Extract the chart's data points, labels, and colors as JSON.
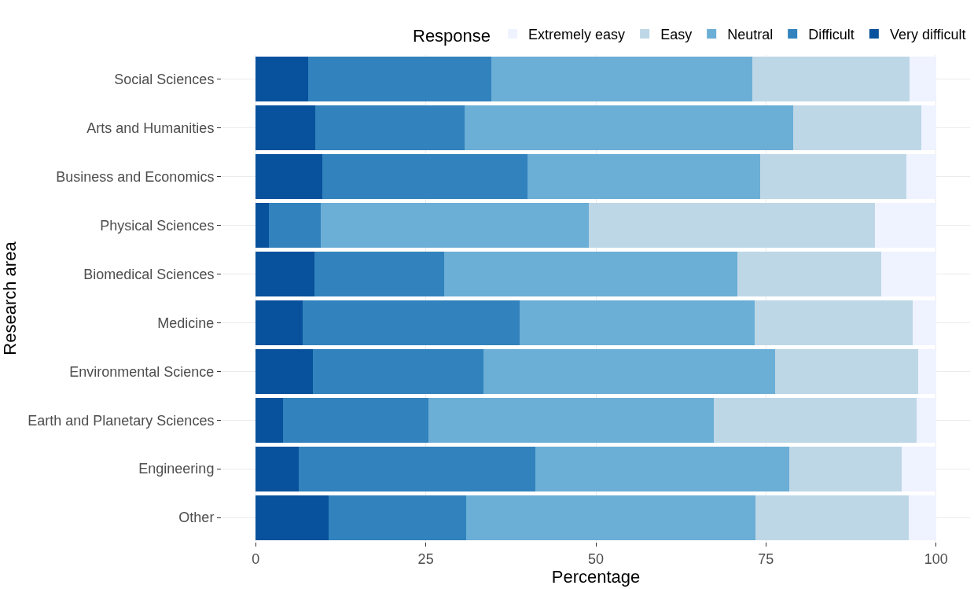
{
  "chart_data": {
    "type": "bar",
    "orientation": "horizontal",
    "stacked": true,
    "xlabel": "Percentage",
    "ylabel": "Research area",
    "legend_title": "Response",
    "legend": "top",
    "grid": true,
    "categories": [
      "Social Sciences",
      "Arts and Humanities",
      "Business and Economics",
      "Physical Sciences",
      "Biomedical Sciences",
      "Medicine",
      "Environmental Science",
      "Earth and Planetary Sciences",
      "Engineering",
      "Other"
    ],
    "xlim": [
      -5,
      105
    ],
    "xticks": [
      0,
      25,
      50,
      75,
      100
    ],
    "series": [
      {
        "name": "Very difficult",
        "color": "#08519c",
        "values": [
          7.7,
          8.7,
          9.8,
          1.9,
          8.6,
          6.9,
          8.4,
          4.0,
          6.3,
          10.7
        ]
      },
      {
        "name": "Difficult",
        "color": "#3182bd",
        "values": [
          26.9,
          22.0,
          30.1,
          7.7,
          19.1,
          31.9,
          25.1,
          21.4,
          34.8,
          20.2
        ]
      },
      {
        "name": "Neutral",
        "color": "#6baed6",
        "values": [
          38.4,
          48.3,
          34.3,
          39.4,
          43.1,
          34.5,
          42.9,
          41.9,
          37.3,
          42.6
        ]
      },
      {
        "name": "Easy",
        "color": "#bdd7e7",
        "values": [
          23.1,
          18.8,
          21.4,
          42.0,
          21.1,
          23.3,
          21.0,
          29.8,
          16.5,
          22.5
        ]
      },
      {
        "name": "Extremely easy",
        "color": "#eff3ff",
        "values": [
          3.9,
          2.2,
          4.4,
          9.0,
          8.1,
          3.4,
          2.6,
          2.9,
          5.1,
          4.0
        ]
      }
    ]
  }
}
